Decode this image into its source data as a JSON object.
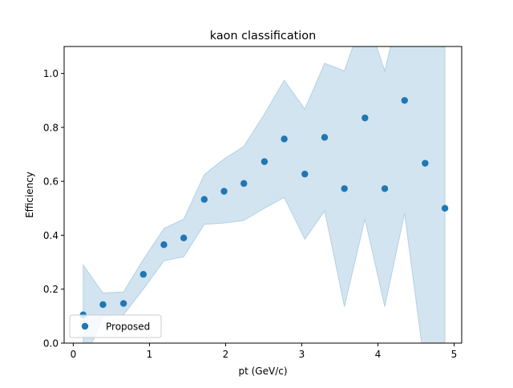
{
  "chart_data": {
    "type": "scatter",
    "title": "kaon classification",
    "xlabel": "pt (GeV/c)",
    "ylabel": "Efficiency",
    "xlim": [
      -0.12,
      5.1
    ],
    "ylim": [
      0.0,
      1.1
    ],
    "xticks": [
      0,
      1,
      2,
      3,
      4,
      5
    ],
    "yticks": [
      0.0,
      0.2,
      0.4,
      0.6,
      0.8,
      1.0
    ],
    "xtick_labels": [
      "0",
      "1",
      "2",
      "3",
      "4",
      "5"
    ],
    "ytick_labels": [
      "0.0",
      "0.2",
      "0.4",
      "0.6",
      "0.8",
      "1.0"
    ],
    "grid": false,
    "legend": {
      "position": "lower-left",
      "entries": [
        "Proposed"
      ]
    },
    "series": [
      {
        "name": "Proposed",
        "color": "#1f77b4",
        "band_color": "#1f77b4",
        "band_opacity": 0.2,
        "x": [
          0.13,
          0.39,
          0.66,
          0.92,
          1.19,
          1.45,
          1.72,
          1.98,
          2.24,
          2.51,
          2.77,
          3.04,
          3.3,
          3.56,
          3.83,
          4.09,
          4.35,
          4.62,
          4.88
        ],
        "y": [
          0.105,
          0.143,
          0.147,
          0.255,
          0.365,
          0.39,
          0.533,
          0.563,
          0.592,
          0.673,
          0.757,
          0.627,
          0.763,
          0.573,
          0.835,
          0.573,
          0.9,
          0.667,
          0.5
        ],
        "lower": [
          -0.08,
          0.1,
          0.105,
          0.2,
          0.305,
          0.32,
          0.44,
          0.445,
          0.455,
          0.5,
          0.54,
          0.385,
          0.49,
          0.135,
          0.46,
          0.135,
          0.48,
          -0.1,
          -0.2
        ],
        "upper": [
          0.29,
          0.186,
          0.19,
          0.31,
          0.425,
          0.46,
          0.625,
          0.683,
          0.73,
          0.85,
          0.975,
          0.868,
          1.038,
          1.01,
          1.23,
          1.01,
          1.32,
          1.4,
          1.2
        ]
      }
    ]
  }
}
